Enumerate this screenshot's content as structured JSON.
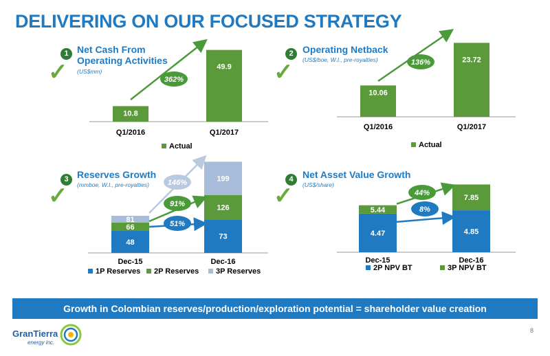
{
  "title": "DELIVERING ON OUR FOCUSED STRATEGY",
  "banner": "Growth in Colombian reserves/production/exploration potential = shareholder value creation",
  "logo": {
    "name": "GranTierra",
    "sub": "energy inc."
  },
  "page_number": "8",
  "panels": [
    {
      "num": "1",
      "title_line1": "Net Cash From",
      "title_line2": "Operating Activities",
      "subtitle": "(US$mm)"
    },
    {
      "num": "2",
      "title_line1": "Operating Netback",
      "title_line2": "",
      "subtitle": "(US$/boe, W.I., pre-royalties)"
    },
    {
      "num": "3",
      "title_line1": "Reserves Growth",
      "title_line2": "",
      "subtitle": "(mmboe, W.I., pre-royalties)"
    },
    {
      "num": "4",
      "title_line1": "Net Asset Value Growth",
      "title_line2": "",
      "subtitle": "(US$/share)"
    }
  ],
  "colors": {
    "blue": "#1f7ac1",
    "green": "#5b9a3b",
    "lightblue": "#a7bcd9",
    "arrow_green": "#4a9a3a",
    "arrow_blue": "#1f7ac1"
  },
  "chart_data": [
    {
      "type": "bar",
      "title": "Net Cash From Operating Activities",
      "categories": [
        "Q1/2016",
        "Q1/2017"
      ],
      "series": [
        {
          "name": "Actual",
          "values": [
            10.8,
            49.9
          ]
        }
      ],
      "value_labels": [
        "10.8",
        "49.9"
      ],
      "annotation": "362%",
      "ylim": [
        0,
        55
      ],
      "legend": "bottom"
    },
    {
      "type": "bar",
      "title": "Operating Netback",
      "categories": [
        "Q1/2016",
        "Q1/2017"
      ],
      "series": [
        {
          "name": "Actual",
          "values": [
            10.06,
            23.72
          ]
        }
      ],
      "value_labels": [
        "10.06",
        "23.72"
      ],
      "annotation": "136%",
      "ylim": [
        0,
        26
      ],
      "legend": "bottom"
    },
    {
      "type": "bar",
      "stacked": true,
      "title": "Reserves Growth",
      "categories": [
        "Dec-15",
        "Dec-16"
      ],
      "series": [
        {
          "name": "1P Reserves",
          "values": [
            48,
            73
          ],
          "labels": [
            "48",
            "73"
          ]
        },
        {
          "name": "2P Reserves",
          "values": [
            18,
            53
          ],
          "labels": [
            "66",
            "126"
          ]
        },
        {
          "name": "3P Reserves",
          "values": [
            15,
            73
          ],
          "labels": [
            "81",
            "199"
          ]
        }
      ],
      "annotations": [
        "146%",
        "91%",
        "51%"
      ],
      "ylim": [
        0,
        210
      ],
      "legend": "bottom"
    },
    {
      "type": "bar",
      "stacked": true,
      "title": "Net Asset Value Growth",
      "categories": [
        "Dec-15",
        "Dec-16"
      ],
      "series": [
        {
          "name": "2P NPV BT",
          "values": [
            4.47,
            4.85
          ],
          "labels": [
            "4.47",
            "4.85"
          ]
        },
        {
          "name": "3P NPV BT",
          "values": [
            0.97,
            3.0
          ],
          "labels": [
            "5.44",
            "7.85"
          ]
        }
      ],
      "annotations": [
        "44%",
        "8%"
      ],
      "ylim": [
        0,
        8.2
      ],
      "legend": "bottom"
    }
  ]
}
